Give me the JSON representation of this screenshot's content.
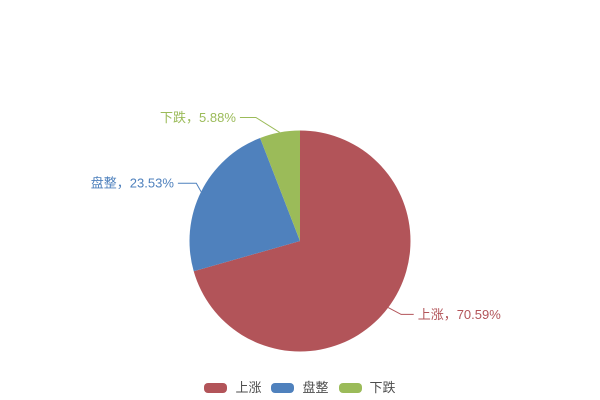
{
  "chart_data": {
    "type": "pie",
    "title": "",
    "start_angle": "top",
    "direction": "clockwise",
    "legend_position": "bottom",
    "background": "#ffffff",
    "slices": [
      {
        "label": "上涨",
        "percent": 70.59,
        "color": "#b25459",
        "data_label": "上涨，70.59%"
      },
      {
        "label": "盘整",
        "percent": 23.53,
        "color": "#4f81bd",
        "data_label": "盘整，23.53%"
      },
      {
        "label": "下跌",
        "percent": 5.88,
        "color": "#9bbb59",
        "data_label": "下跌，5.88%"
      }
    ],
    "legend": [
      "上涨",
      "盘整",
      "下跌"
    ],
    "legend_text_color": "#4d4d4d"
  }
}
